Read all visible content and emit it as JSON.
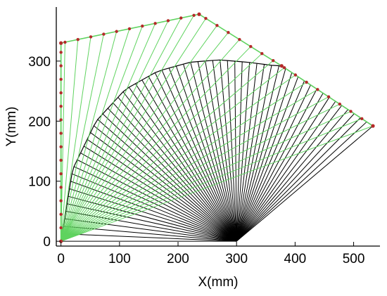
{
  "chart_data": {
    "type": "line",
    "title": "",
    "xlabel": "X(mm)",
    "ylabel": "Y(mm)",
    "xlim": [
      -8,
      545
    ],
    "ylim": [
      -8,
      390
    ],
    "xticks": [
      0,
      100,
      200,
      300,
      400,
      500
    ],
    "yticks": [
      0,
      100,
      200,
      300
    ],
    "xtick_labels": [
      "0",
      "100",
      "200",
      "300",
      "400",
      "500"
    ],
    "ytick_labels": [
      "0",
      "100",
      "200",
      "300"
    ],
    "grid": false,
    "legend": "none",
    "colors": {
      "green": "#5fd35f",
      "black": "#000000",
      "joint": "#b52a2a"
    },
    "series": [
      {
        "color": "green",
        "polyline_vertices": [
          [
            0,
            0
          ],
          [
            0,
            330
          ],
          [
            236,
            378
          ],
          [
            377,
            292
          ],
          [
            533,
            192
          ]
        ],
        "link_pivot": [
          0,
          0
        ],
        "joint_points": [
          [
            0,
            0
          ],
          [
            0,
            330
          ],
          [
            236,
            378
          ],
          [
            377,
            292
          ],
          [
            533,
            192
          ]
        ]
      },
      {
        "color": "black",
        "fan_pivot": [
          300,
          0
        ],
        "arc_points": [
          [
            0,
            0
          ],
          [
            20,
            120
          ],
          [
            60,
            200
          ],
          [
            110,
            253
          ],
          [
            165,
            283
          ],
          [
            220,
            298
          ],
          [
            270,
            302
          ],
          [
            320,
            298
          ],
          [
            360,
            293
          ],
          [
            377,
            292
          ],
          [
            533,
            192
          ]
        ]
      }
    ]
  }
}
